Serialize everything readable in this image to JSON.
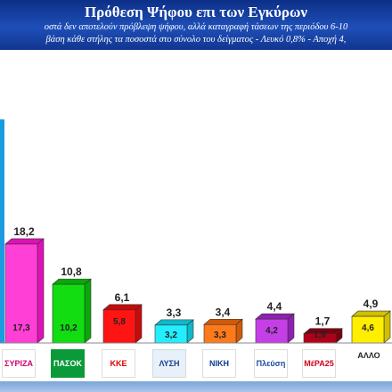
{
  "header": {
    "title": "Πρόθεση Ψήφου επι των Εγκύρων",
    "subtitle_1": "οστά δεν αποτελούν πρόβλεψη ψήφου, αλλά καταγραφή τάσεων της περιόδου  6-10",
    "subtitle_2": "βάση κάθε στήλης τα ποσοστά στο σύνολο του δείγματος - Λευκό 0,8% - Αποχή 4,"
  },
  "chart_data": {
    "type": "bar",
    "title": "Πρόθεση Ψήφου επι των Εγκύρων",
    "xlabel": "",
    "ylabel": "",
    "grid": false,
    "categories": [
      "ΣΥΡΙΖΑ",
      "ΠΑΣΟΚ",
      "ΚΚΕ",
      "ΕΛΛΗΝΙΚΗ ΛΥΣΗ",
      "ΝΙΚΗ",
      "Πλεύση Ελευθερίας",
      "ΜέΡΑ25",
      "ΑΛΛΟ"
    ],
    "series": [
      {
        "values": [
          18.2,
          10.8,
          6.1,
          3.3,
          3.4,
          4.4,
          1.7,
          4.9
        ],
        "inner_values": [
          17.3,
          10.2,
          5.8,
          3.2,
          3.3,
          4.2,
          1.6,
          4.6
        ]
      }
    ],
    "value_labels": [
      "18,2",
      "10,8",
      "6,1",
      "3,3",
      "3,4",
      "4,4",
      "1,7",
      "4,9"
    ],
    "inner_labels": [
      "17,3",
      "10,2",
      "5,8",
      "3,2",
      "3,3",
      "4,2",
      "1,6",
      "4,6"
    ],
    "colors": {
      "front": [
        "#ff3fd6",
        "#11dd11",
        "#ff1414",
        "#22eeff",
        "#ff7a1a",
        "#c43fe6",
        "#b3001a",
        "#ffee00"
      ],
      "back": [
        "#e10fb9",
        "#09a809",
        "#c80a0a",
        "#10b8c8",
        "#cf5a0a",
        "#8f1fb3",
        "#7a0010",
        "#d1c000"
      ],
      "leading_bar": "#1a9be0",
      "header": "#1e4fb8"
    },
    "ylim": [
      0,
      30
    ]
  },
  "logos": [
    {
      "icon": "syriza-logo",
      "text": "ΣΥΡΙΖΑ"
    },
    {
      "icon": "pasok-logo",
      "text": "ΠΑΣΟΚ"
    },
    {
      "icon": "kke-logo",
      "text": "ΚΚΕ"
    },
    {
      "icon": "elliniki-lysi-logo",
      "text": "ΛΥΣΗ"
    },
    {
      "icon": "niki-logo",
      "text": "ΝΙΚΗ"
    },
    {
      "icon": "plefsi-logo",
      "text": "Πλεύση"
    },
    {
      "icon": "mera25-logo",
      "text": "ΜέΡΑ25"
    },
    {
      "icon": "allo-label",
      "text": "ΑΛΛΟ"
    }
  ]
}
